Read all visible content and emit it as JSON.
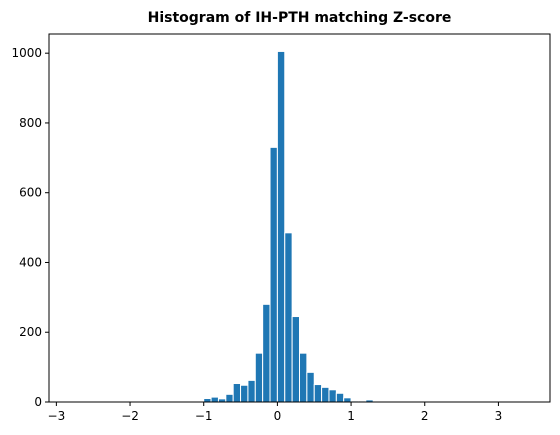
{
  "chart_data": {
    "type": "bar",
    "title": "Histogram of IH-PTH matching Z-score",
    "xlabel": "",
    "ylabel": "",
    "xlim": [
      -3.1,
      3.7
    ],
    "ylim": [
      0,
      1055
    ],
    "x_ticks": [
      -3,
      -2,
      -1,
      0,
      1,
      2,
      3
    ],
    "x_tick_labels": [
      "−3",
      "−2",
      "−1",
      "0",
      "1",
      "2",
      "3"
    ],
    "y_ticks": [
      0,
      200,
      400,
      600,
      800,
      1000
    ],
    "y_tick_labels": [
      "0",
      "200",
      "400",
      "600",
      "800",
      "1000"
    ],
    "bar_color": "#1f77b4",
    "edge_color": "#ffffff",
    "grid": false,
    "legend": "none",
    "bins": [
      {
        "x0": -1.3,
        "x1": -1.2,
        "count": 10
      },
      {
        "x0": -1.2,
        "x1": -1.1,
        "count": 14
      },
      {
        "x0": -1.1,
        "x1": -1.0,
        "count": 9
      },
      {
        "x0": -1.0,
        "x1": -0.9,
        "count": 22
      },
      {
        "x0": -0.9,
        "x1": -0.8,
        "count": 53
      },
      {
        "x0": -0.8,
        "x1": -0.7,
        "count": 48
      },
      {
        "x0": -0.7,
        "x1": -0.6,
        "count": 62
      },
      {
        "x0": -0.6,
        "x1": -0.5,
        "count": 140
      },
      {
        "x0": -0.5,
        "x1": -0.4,
        "count": 280
      },
      {
        "x0": -0.4,
        "x1": -0.3,
        "count": 730
      },
      {
        "x0": -0.3,
        "x1": -0.2,
        "count": 1005
      },
      {
        "x0": -0.2,
        "x1": -0.1,
        "count": 485
      },
      {
        "x0": -0.1,
        "x1": 0.0,
        "count": 245
      },
      {
        "x0": 0.0,
        "x1": 0.1,
        "count": 140
      },
      {
        "x0": 0.1,
        "x1": 0.2,
        "count": 85
      },
      {
        "x0": 0.2,
        "x1": 0.3,
        "count": 50
      },
      {
        "x0": 0.3,
        "x1": 0.4,
        "count": 42
      },
      {
        "x0": 0.4,
        "x1": 0.5,
        "count": 35
      },
      {
        "x0": 0.5,
        "x1": 0.6,
        "count": 25
      },
      {
        "x0": 0.6,
        "x1": 0.7,
        "count": 12
      },
      {
        "x0": 0.7,
        "x1": 0.8,
        "count": 3
      },
      {
        "x0": 0.8,
        "x1": 0.9,
        "count": 3
      },
      {
        "x0": 0.9,
        "x1": 1.0,
        "count": 6
      }
    ]
  }
}
